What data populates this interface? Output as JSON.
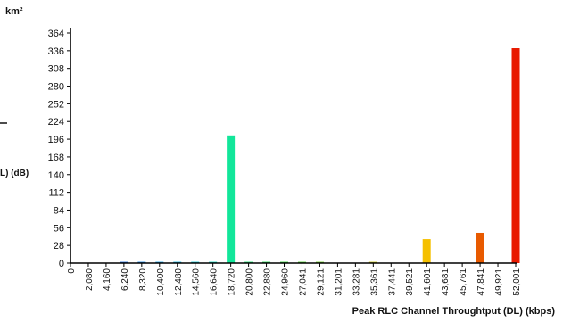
{
  "chart_data": {
    "type": "bar",
    "title": "",
    "unit_label": "km²",
    "xlabel": "Peak RLC Channel Throughtput (DL) (kbps)",
    "ylabel_fragment": "L) (dB)",
    "yticks": [
      0,
      28,
      56,
      84,
      112,
      140,
      168,
      196,
      224,
      252,
      280,
      308,
      336,
      364
    ],
    "ylim": [
      0,
      364
    ],
    "grid": false,
    "categories": [
      "0",
      "2,080",
      "4,160",
      "6,240",
      "8,320",
      "10,400",
      "12,480",
      "14,560",
      "16,640",
      "18,720",
      "20,800",
      "22,880",
      "24,960",
      "27,041",
      "29,121",
      "31,201",
      "33,281",
      "35,361",
      "37,441",
      "39,521",
      "41,601",
      "43,681",
      "45,761",
      "47,841",
      "49,921",
      "52,001"
    ],
    "values": [
      0,
      0,
      0,
      2,
      2,
      2,
      2,
      2,
      2,
      202,
      2,
      2,
      2,
      2,
      2,
      0,
      0,
      2,
      0,
      0,
      38,
      0,
      0,
      48,
      0,
      340
    ],
    "colors": [
      "#1f3fbf",
      "#1f4fcf",
      "#1f5fdf",
      "#1f70e0",
      "#1b88e6",
      "#17a0e6",
      "#14b4e0",
      "#12c6d6",
      "#10d6c2",
      "#12e69a",
      "#18e070",
      "#20d850",
      "#30d438",
      "#50d030",
      "#70cc28",
      "#90c820",
      "#b0c820",
      "#c8c418",
      "#dcc010",
      "#ecbe08",
      "#f5c000",
      "#f5a000",
      "#f08000",
      "#e85a00",
      "#e83500",
      "#e81a00"
    ]
  }
}
